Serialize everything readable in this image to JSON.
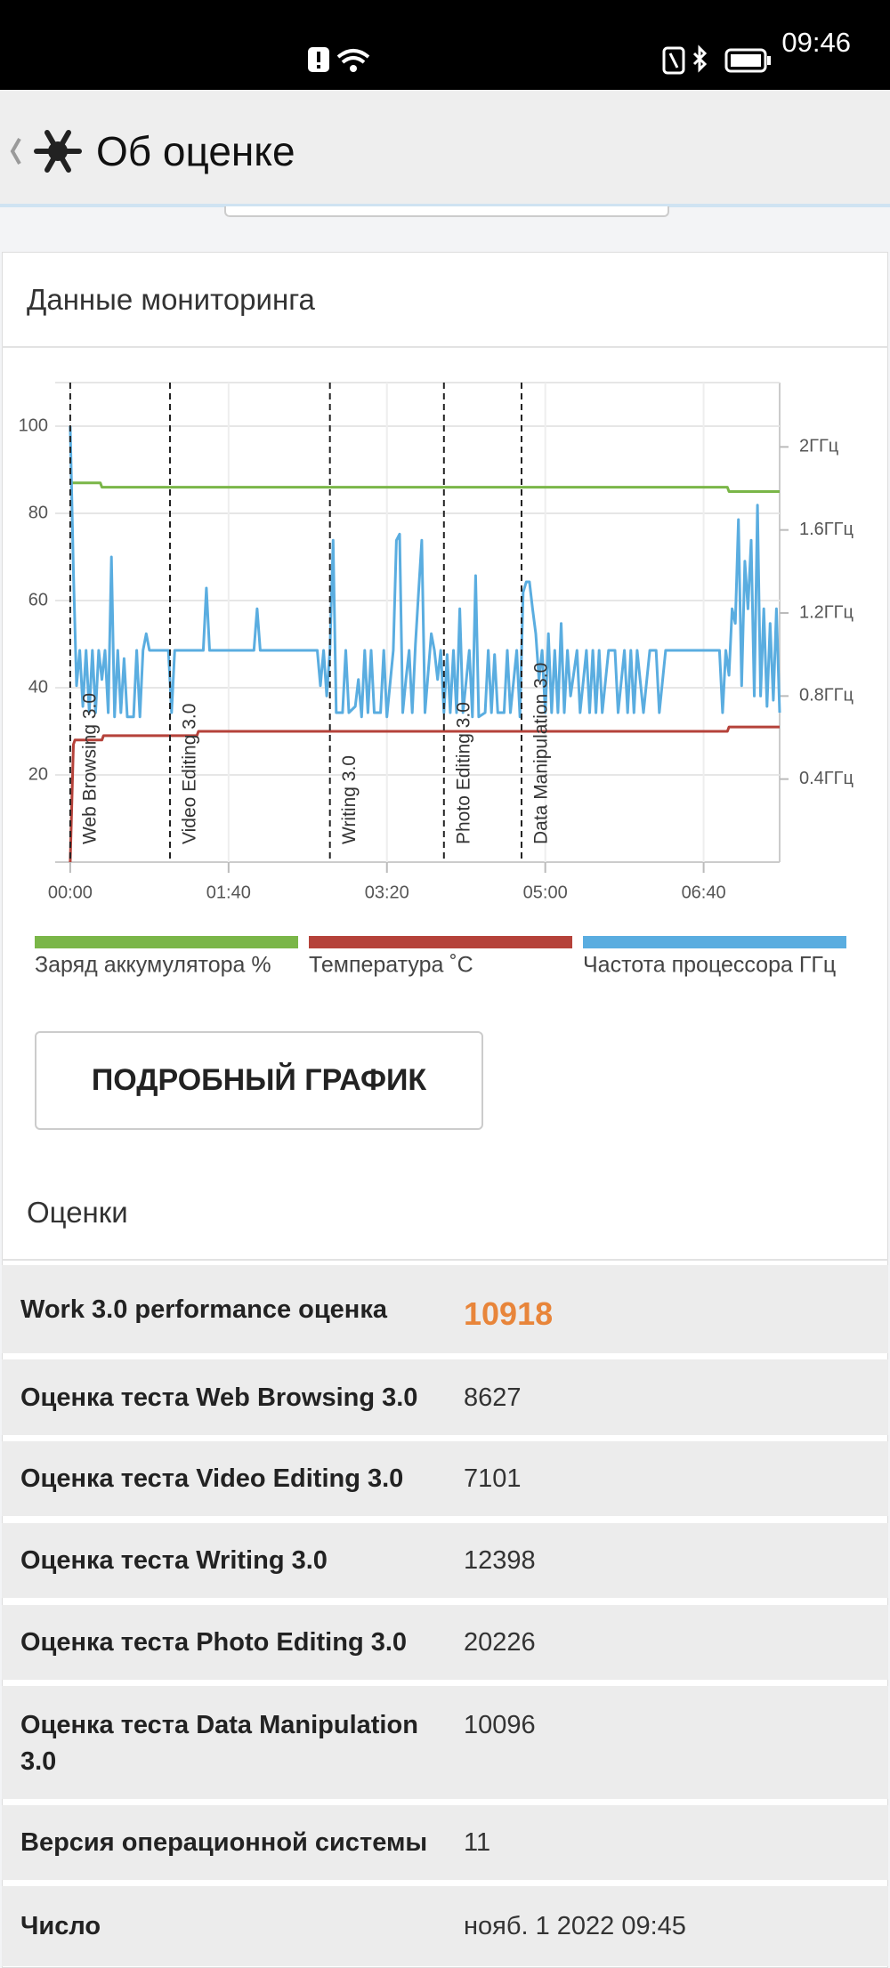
{
  "status_bar": {
    "time": "09:46"
  },
  "header": {
    "title": "Об оценке"
  },
  "monitoring": {
    "title": "Данные мониторинга",
    "button": "ПОДРОБНЫЙ ГРАФИК"
  },
  "chart_data": {
    "type": "line",
    "xlim": [
      -9.5,
      448
    ],
    "xticks": [
      {
        "value": 0,
        "label": "00:00"
      },
      {
        "value": 100,
        "label": "01:40"
      },
      {
        "value": 200,
        "label": "03:20"
      },
      {
        "value": 300,
        "label": "05:00"
      },
      {
        "value": 400,
        "label": "06:40"
      }
    ],
    "ylim": [
      0,
      110
    ],
    "yticks": [
      20,
      40,
      60,
      80,
      100
    ],
    "y2lim": [
      0,
      2.31
    ],
    "y2ticks": [
      {
        "value": 0.4,
        "label": "0.4ГГц"
      },
      {
        "value": 0.8,
        "label": "0.8ГГц"
      },
      {
        "value": 1.2,
        "label": "1.2ГГц"
      },
      {
        "value": 1.6,
        "label": "1.6ГГц"
      },
      {
        "value": 2,
        "label": "2ГГц"
      }
    ],
    "grid": true,
    "markers": [
      {
        "label": "Web Browsing 3.0",
        "x": 0
      },
      {
        "label": "Video Editing 3.0",
        "x": 63
      },
      {
        "label": "Writing 3.0",
        "x": 164
      },
      {
        "label": "Photo Editing 3.0",
        "x": 236
      },
      {
        "label": "Data Manipulation 3.0",
        "x": 285
      }
    ],
    "series": [
      {
        "name": "Заряд аккумулятора %",
        "color": "#7ab648",
        "x": [
          0,
          19,
          20,
          415,
          416,
          448
        ],
        "values": [
          87,
          87,
          86,
          86,
          85,
          85
        ]
      },
      {
        "name": "Температура ˚C",
        "color": "#b5423a",
        "x": [
          0,
          2,
          3,
          20,
          21,
          80,
          81,
          415,
          416,
          448
        ],
        "values": [
          0,
          27,
          28,
          28,
          29,
          29,
          30,
          30,
          31,
          31
        ]
      },
      {
        "name": "Частота процессора ГГц",
        "color": "#5aade0",
        "axis": "y2",
        "x": [
          0,
          2,
          4,
          6,
          8,
          10,
          12,
          14,
          16,
          18,
          20,
          22,
          24,
          26,
          28,
          30,
          32,
          34,
          36,
          40,
          42,
          44,
          46,
          48,
          50,
          62,
          64,
          66,
          84,
          86,
          88,
          116,
          118,
          120,
          156,
          158,
          160,
          162,
          164,
          166,
          168,
          172,
          174,
          176,
          180,
          182,
          184,
          186,
          188,
          190,
          192,
          196,
          198,
          200,
          204,
          206,
          208,
          210,
          212,
          214,
          216,
          218,
          220,
          222,
          224,
          228,
          230,
          232,
          234,
          236,
          238,
          240,
          242,
          244,
          246,
          248,
          252,
          254,
          256,
          258,
          262,
          264,
          266,
          268,
          270,
          274,
          276,
          278,
          282,
          284,
          286,
          288,
          290,
          292,
          294,
          296,
          298,
          300,
          302,
          304,
          306,
          308,
          310,
          312,
          314,
          316,
          320,
          322,
          326,
          328,
          330,
          332,
          334,
          336,
          340,
          344,
          346,
          350,
          352,
          354,
          356,
          358,
          362,
          366,
          370,
          372,
          376,
          410,
          412,
          414,
          416,
          418,
          420,
          422,
          424,
          426,
          428,
          430,
          432,
          434,
          436,
          438,
          440,
          442,
          444,
          446,
          448
        ],
        "values": [
          2.1,
          1.4,
          0.85,
          1.02,
          0.75,
          1.02,
          0.72,
          1.02,
          0.72,
          1.02,
          0.88,
          1.02,
          0.72,
          1.47,
          0.7,
          1.02,
          0.72,
          0.98,
          0.7,
          0.7,
          1.02,
          0.7,
          1.02,
          1.1,
          1.02,
          1.02,
          0.72,
          1.02,
          1.02,
          1.32,
          1.02,
          1.02,
          1.22,
          1.02,
          1.02,
          0.85,
          1.02,
          0.8,
          1.02,
          1.55,
          0.72,
          0.72,
          1.02,
          0.72,
          0.75,
          0.88,
          0.7,
          1.02,
          0.72,
          1.02,
          0.72,
          0.72,
          1.02,
          0.7,
          1.02,
          1.55,
          1.58,
          0.72,
          0.88,
          1.02,
          0.72,
          1.05,
          1.3,
          1.55,
          0.72,
          1.1,
          1.02,
          0.88,
          1.02,
          0.72,
          1.0,
          0.72,
          1.02,
          0.72,
          1.22,
          0.72,
          1.02,
          0.7,
          1.38,
          0.7,
          0.72,
          1.02,
          0.72,
          1.0,
          0.72,
          0.72,
          1.02,
          0.72,
          1.02,
          0.7,
          1.3,
          1.35,
          1.35,
          1.22,
          1.1,
          0.88,
          1.02,
          0.72,
          1.1,
          0.72,
          1.02,
          0.72,
          1.15,
          0.72,
          1.02,
          0.8,
          1.02,
          0.72,
          1.02,
          0.72,
          1.02,
          0.72,
          1.02,
          0.72,
          1.02,
          1.02,
          0.72,
          1.02,
          0.72,
          1.02,
          0.72,
          1.02,
          0.72,
          1.02,
          1.02,
          0.72,
          1.02,
          1.02,
          0.72,
          1.02,
          0.9,
          1.22,
          1.15,
          1.65,
          0.85,
          1.45,
          1.22,
          1.55,
          0.8,
          1.72,
          0.8,
          1.22,
          0.75,
          1.15,
          0.78,
          1.22,
          0.72
        ]
      }
    ]
  },
  "scores": {
    "title": "Оценки",
    "rows": [
      [
        "Work 3.0 performance оценка",
        10918
      ],
      [
        "Оценка теста Web Browsing 3.0",
        8627
      ],
      [
        "Оценка теста Video Editing 3.0",
        7101
      ],
      [
        "Оценка теста Writing 3.0",
        12398
      ],
      [
        "Оценка теста Photo Editing 3.0",
        20226
      ],
      [
        "Оценка теста Data Manipulation 3.0",
        10096
      ],
      [
        "Версия операционной системы",
        11
      ],
      [
        "Число",
        "нояб. 1 2022 09:45"
      ]
    ]
  }
}
